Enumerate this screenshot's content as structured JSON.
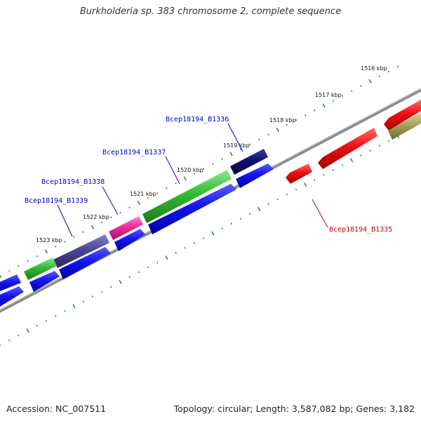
{
  "title": "Burkholderia sp. 383 chromosome 2, complete sequence",
  "footer": {
    "accession": "Accession: NC_007511",
    "info": "Topology: circular; Length: 3,587,082 bp; Genes: 3,182"
  },
  "ruler": [
    "1516 kbp",
    "1517 kbp",
    "1518 kbp",
    "1519 kbp",
    "1520 kbp",
    "1521 kbp",
    "1522 kbp",
    "1523 kbp"
  ],
  "genes": [
    {
      "name": "Bcep18194_B1336",
      "color": "#0000cc"
    },
    {
      "name": "Bcep18194_B1337",
      "color": "#0000cc"
    },
    {
      "name": "Bcep18194_B1338",
      "color": "#0000cc"
    },
    {
      "name": "Bcep18194_B1339",
      "color": "#0000cc"
    },
    {
      "name": "Bcep18194_B1335",
      "color": "#cc0000"
    }
  ],
  "colors": {
    "backbone": "#808080",
    "tick": "#2e8b2e",
    "forward_cds": "#1010ee",
    "reverse_cds": "#ee0f0f",
    "green": "#33bb33",
    "magenta": "#ee2d9a",
    "navy": "#101070",
    "slate": "#4b4696",
    "olive": "#a8a45e"
  }
}
